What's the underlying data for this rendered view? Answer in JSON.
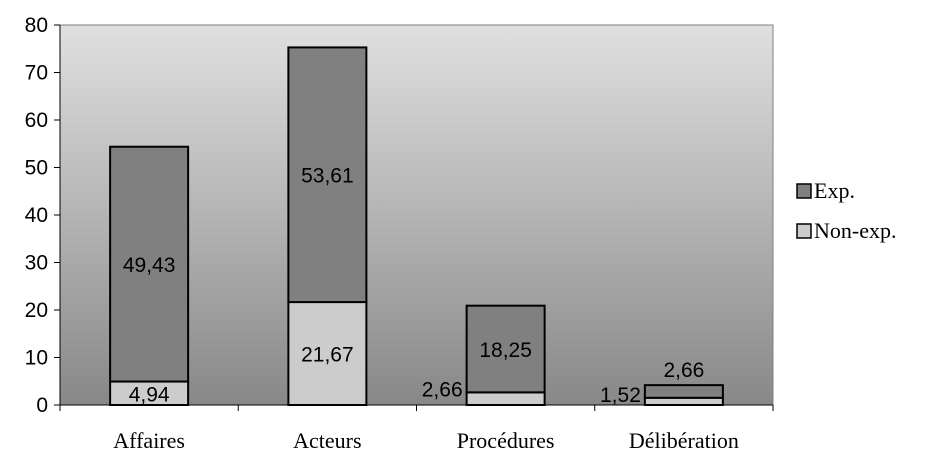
{
  "chart_data": {
    "type": "bar",
    "stacked": true,
    "categories": [
      "Affaires",
      "Acteurs",
      "Procédures",
      "Délibération"
    ],
    "series": [
      {
        "name": "Non-exp.",
        "values": [
          4.94,
          21.67,
          2.66,
          1.52
        ],
        "labels": [
          "4,94",
          "21,67",
          "2,66",
          "1,52"
        ],
        "color": "#cccccc"
      },
      {
        "name": "Exp.",
        "values": [
          49.43,
          53.61,
          18.25,
          2.66
        ],
        "labels": [
          "49,43",
          "53,61",
          "18,25",
          "2,66"
        ],
        "color": "#808080"
      }
    ],
    "ylim": [
      0,
      80
    ],
    "yticks": [
      0,
      10,
      20,
      30,
      40,
      50,
      60,
      70,
      80
    ],
    "ytick_labels": [
      "0",
      "10",
      "20",
      "30",
      "40",
      "50",
      "60",
      "70",
      "80"
    ],
    "grid": false,
    "legend_position": "right",
    "legend_order": [
      "Exp.",
      "Non-exp."
    ],
    "plot_background": "gradient-gray"
  }
}
